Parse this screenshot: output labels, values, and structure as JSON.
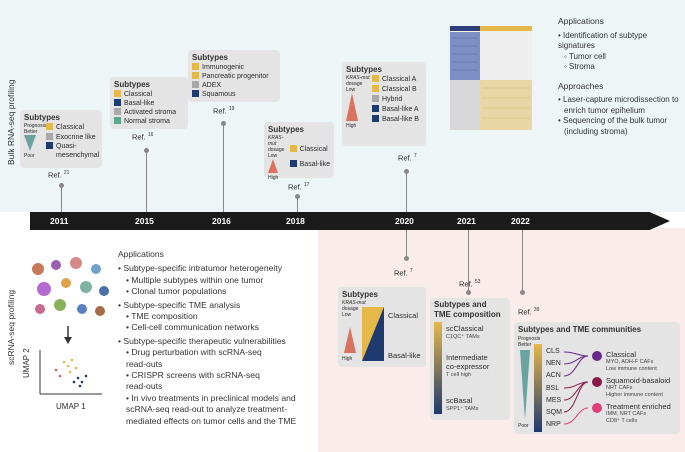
{
  "side_labels": {
    "top": "Bulk RNA-seq profiling",
    "bottom": "scRNA-seq profiling"
  },
  "years": [
    "2011",
    "2015",
    "2016",
    "2018",
    "2020",
    "2021",
    "2022"
  ],
  "colors": {
    "timeline": "#1a1a1a",
    "yellow": "#e6b84a",
    "navy": "#1e3a6e",
    "green": "#5aa889",
    "gray": "#a9a9a9",
    "teal": "#6ba3a0"
  },
  "top_cards": {
    "c2011": {
      "title": "Subtypes",
      "prognosis": "Prognosis",
      "better": "Better",
      "poor": "Poor",
      "items": [
        {
          "label": "Classical",
          "color": "#e6b84a"
        },
        {
          "label": "Exocrine like",
          "color": "#a9a9a9"
        },
        {
          "label": "Quasi-",
          "color": "#1e3a6e"
        },
        {
          "label": "mesenchymal",
          "color": ""
        }
      ],
      "ref": "Ref.",
      "refnum": "21"
    },
    "c2015": {
      "title": "Subtypes",
      "items": [
        {
          "label": "Classical",
          "color": "#e6b84a"
        },
        {
          "label": "Basal-like",
          "color": "#1e3a6e"
        },
        {
          "label": "Activated stroma",
          "color": "#a9a9a9"
        },
        {
          "label": "Normal stroma",
          "color": "#5aa889"
        }
      ],
      "ref": "Ref.",
      "refnum": "16"
    },
    "c2016": {
      "title": "Subtypes",
      "items": [
        {
          "label": "Immunogenic",
          "color": "#e6b84a"
        },
        {
          "label": "Pancreatic progenitor",
          "color": "#e6b84a"
        },
        {
          "label": "ADEX",
          "color": "#a9a9a9"
        },
        {
          "label": "Squamous",
          "color": "#1e3a6e"
        }
      ],
      "ref": "Ref.",
      "refnum": "19"
    },
    "c2018": {
      "title": "Subtypes",
      "dosage1": "KRAS-mut",
      "dosage2": "dosage",
      "low": "Low",
      "high": "High",
      "items": [
        {
          "label": "Classical",
          "color": "#e6b84a"
        },
        {
          "label": "Basal-like",
          "color": "#1e3a6e"
        }
      ],
      "ref": "Ref.",
      "refnum": "17"
    },
    "c2020": {
      "title": "Subtypes",
      "dosage1": "KRAS-mut",
      "dosage2": "dosage",
      "low": "Low",
      "high": "High",
      "items": [
        {
          "label": "Classical A",
          "color": "#e6b84a"
        },
        {
          "label": "Classical B",
          "color": "#e6b84a"
        },
        {
          "label": "Hybrid",
          "color": "#a9a9a9"
        },
        {
          "label": "Basal-like A",
          "color": "#1e3a6e"
        },
        {
          "label": "Basal-like B",
          "color": "#1e3a6e"
        }
      ],
      "ref": "Ref.",
      "refnum": "7"
    }
  },
  "top_right": {
    "applications_title": "Applications",
    "applications": [
      "• Identification of subtype signatures",
      "◦ Tumor cell",
      "◦ Stroma"
    ],
    "approaches_title": "Approaches",
    "approaches": [
      "• Laser-capture microdissection to",
      "enrich tumor epihelium",
      "• Sequencing of the bulk tumor",
      "(including stroma)"
    ]
  },
  "bottom_left": {
    "umap_y": "UMAP 2",
    "umap_x": "UMAP 1",
    "applications_title": "Applications",
    "lines": [
      "• Subtype-specific intratumor heterogeneity",
      "• Multiple subtypes within one tumor",
      "• Clonal tumor populations",
      "• Subtype-specific TME analysis",
      "• TME composition",
      "• Cell-cell communication networks",
      "• Subtype-specific therapeutic vulnerabilities",
      "• Drug perturbation with scRNA-seq",
      "read-outs",
      "• CRISPR screens with scRNA-seq",
      "read-outs",
      "• In vivo treatments in preclinical models and",
      "scRNA-seq read-out to analyze treatment-",
      "mediated effects on tumor cells and the TME"
    ]
  },
  "bottom_cards": {
    "c2020b": {
      "ref": "Ref.",
      "refnum": "7",
      "title": "Subtypes",
      "dosage1": "KRAS-mut",
      "dosage2": "dosage",
      "low": "Low",
      "high": "High",
      "classical": "Classical",
      "basal": "Basal-like"
    },
    "c2021": {
      "ref": "Ref.",
      "refnum": "53",
      "title1": "Subtypes and",
      "title2": "TME composition",
      "sc_classical": "scClassical",
      "c1qc": "C1QC⁺ TAMs",
      "inter1": "Intermediate",
      "inter2": "co-expressor",
      "tcell": "T cell high",
      "sc_basal": "scBasal",
      "sppt": "SPP1⁺ TAMs"
    },
    "c2022": {
      "ref": "Ref.",
      "refnum": "39",
      "title": "Subtypes and TME communities",
      "prognosis": "Prognosis",
      "better": "Better",
      "poor": "Poor",
      "subtypes": [
        "CLS",
        "NEN",
        "ACN",
        "BSL",
        "MES",
        "SQM",
        "NRP"
      ],
      "communities": [
        {
          "name": "Classical",
          "detail1": "MYO, ADH-F CAFs",
          "detail2": "Low immune content",
          "color": "#6a2a8a"
        },
        {
          "name": "Squamoid-basaloid",
          "detail1": "NRT CAFs",
          "detail2": "Higher immune content",
          "color": "#8a1a4a"
        },
        {
          "name": "Treatment enriched",
          "detail1": "IMM, NRT CAFs",
          "detail2": "CD8⁺ T cells",
          "color": "#e0407a"
        }
      ]
    }
  }
}
